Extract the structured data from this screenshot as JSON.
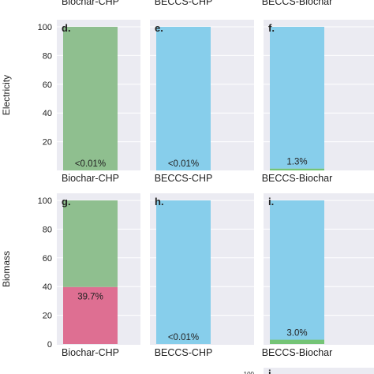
{
  "chart_data": [
    {
      "type": "bar",
      "panel_label": "d.",
      "top_title": "Biochar-CHP",
      "xlabel": "Biochar-CHP",
      "ylabel": "Electricity",
      "ylim": [
        0,
        100
      ],
      "yticks": [
        20,
        40,
        60,
        80,
        100
      ],
      "grid": true,
      "segments": [
        {
          "name": "bottom",
          "value": 0.01,
          "color": "#74c476",
          "label": "<0.01%"
        },
        {
          "name": "top",
          "value": 99.99,
          "color": "#8fbf8f"
        }
      ]
    },
    {
      "type": "bar",
      "panel_label": "e.",
      "top_title": "BECCS-CHP",
      "xlabel": "BECCS-CHP",
      "ylim": [
        0,
        100
      ],
      "grid": true,
      "segments": [
        {
          "name": "bottom",
          "value": 0.01,
          "color": "#74c476",
          "label": "<0.01%"
        },
        {
          "name": "top",
          "value": 99.99,
          "color": "#87ceeb"
        }
      ]
    },
    {
      "type": "bar",
      "panel_label": "f.",
      "top_title": "BECCS-Biochar",
      "xlabel": "BECCS-Biochar",
      "ylim": [
        0,
        100
      ],
      "grid": true,
      "segments": [
        {
          "name": "bottom",
          "value": 1.3,
          "color": "#74c476",
          "label": "1.3%"
        },
        {
          "name": "top",
          "value": 98.7,
          "color": "#87ceeb"
        }
      ]
    },
    {
      "type": "bar",
      "panel_label": "g.",
      "xlabel": "Biochar-CHP",
      "ylabel": "Biomass",
      "ylim": [
        0,
        100
      ],
      "yticks": [
        0,
        20,
        40,
        60,
        80,
        100
      ],
      "grid": true,
      "segments": [
        {
          "name": "bottom",
          "value": 39.7,
          "color": "#de6f92",
          "label": "39.7%"
        },
        {
          "name": "top",
          "value": 60.3,
          "color": "#8fbf8f"
        }
      ]
    },
    {
      "type": "bar",
      "panel_label": "h.",
      "xlabel": "BECCS-CHP",
      "ylim": [
        0,
        100
      ],
      "grid": true,
      "segments": [
        {
          "name": "bottom",
          "value": 0.01,
          "color": "#74c476",
          "label": "<0.01%"
        },
        {
          "name": "top",
          "value": 99.99,
          "color": "#87ceeb"
        }
      ]
    },
    {
      "type": "bar",
      "panel_label": "i.",
      "xlabel": "BECCS-Biochar",
      "ylim": [
        0,
        100
      ],
      "grid": true,
      "segments": [
        {
          "name": "bottom",
          "value": 3.0,
          "color": "#74c476",
          "label": "3.0%"
        },
        {
          "name": "top",
          "value": 97.0,
          "color": "#87ceeb"
        }
      ]
    }
  ],
  "partial": {
    "tick_label": "100",
    "panel_label": "j."
  }
}
